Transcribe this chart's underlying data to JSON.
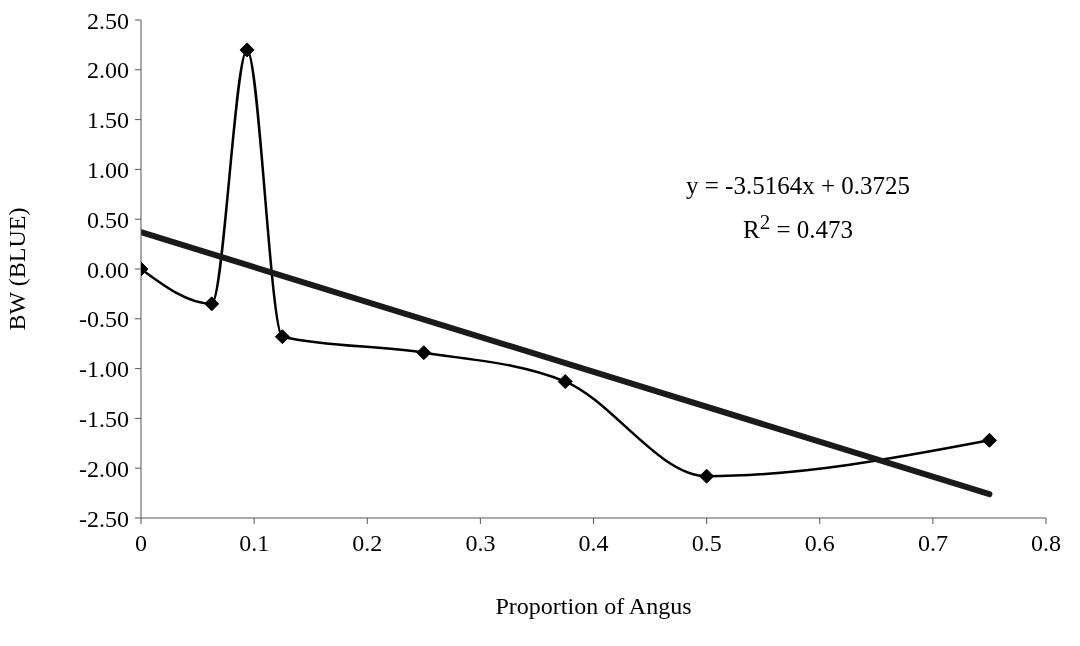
{
  "chart_data": {
    "type": "line",
    "xlabel": "Proportion of Angus",
    "ylabel": "BW (BLUE)",
    "xlim": [
      0,
      0.8
    ],
    "xticks": [
      0,
      0.1,
      0.2,
      0.3,
      0.4,
      0.5,
      0.6,
      0.7,
      0.8
    ],
    "ylim": [
      -2.5,
      2.5
    ],
    "yticks": [
      {
        "value": -2.5,
        "label": "-2.50"
      },
      {
        "value": -2,
        "label": "-2.00"
      },
      {
        "value": -1.5,
        "label": "-1.50"
      },
      {
        "value": -1,
        "label": "-1.00"
      },
      {
        "value": -0.5,
        "label": "-0.50"
      },
      {
        "value": 0,
        "label": "0.00"
      },
      {
        "value": 0.5,
        "label": "0.50"
      },
      {
        "value": 1,
        "label": "1.00"
      },
      {
        "value": 1.5,
        "label": "1.50"
      },
      {
        "value": 2,
        "label": "2.00"
      },
      {
        "value": 2.5,
        "label": "2.50"
      }
    ],
    "grid": false,
    "series": [
      {
        "color": "#000000",
        "marker": "diamond",
        "x": [
          0,
          0.0625,
          0.09375,
          0.125,
          0.25,
          0.375,
          0.5,
          0.75
        ],
        "values": [
          0,
          -0.35,
          2.2,
          -0.68,
          -0.84,
          -1.13,
          -2.08,
          -1.72
        ]
      },
      {
        "color": "#1a1a1a",
        "marker": "none",
        "x": [
          0,
          0.75
        ],
        "values": [
          0.37,
          -2.26
        ]
      }
    ],
    "annotations": [
      "y = -3.5164x + 0.3725",
      "R$^{2}$ = 0.473"
    ]
  }
}
